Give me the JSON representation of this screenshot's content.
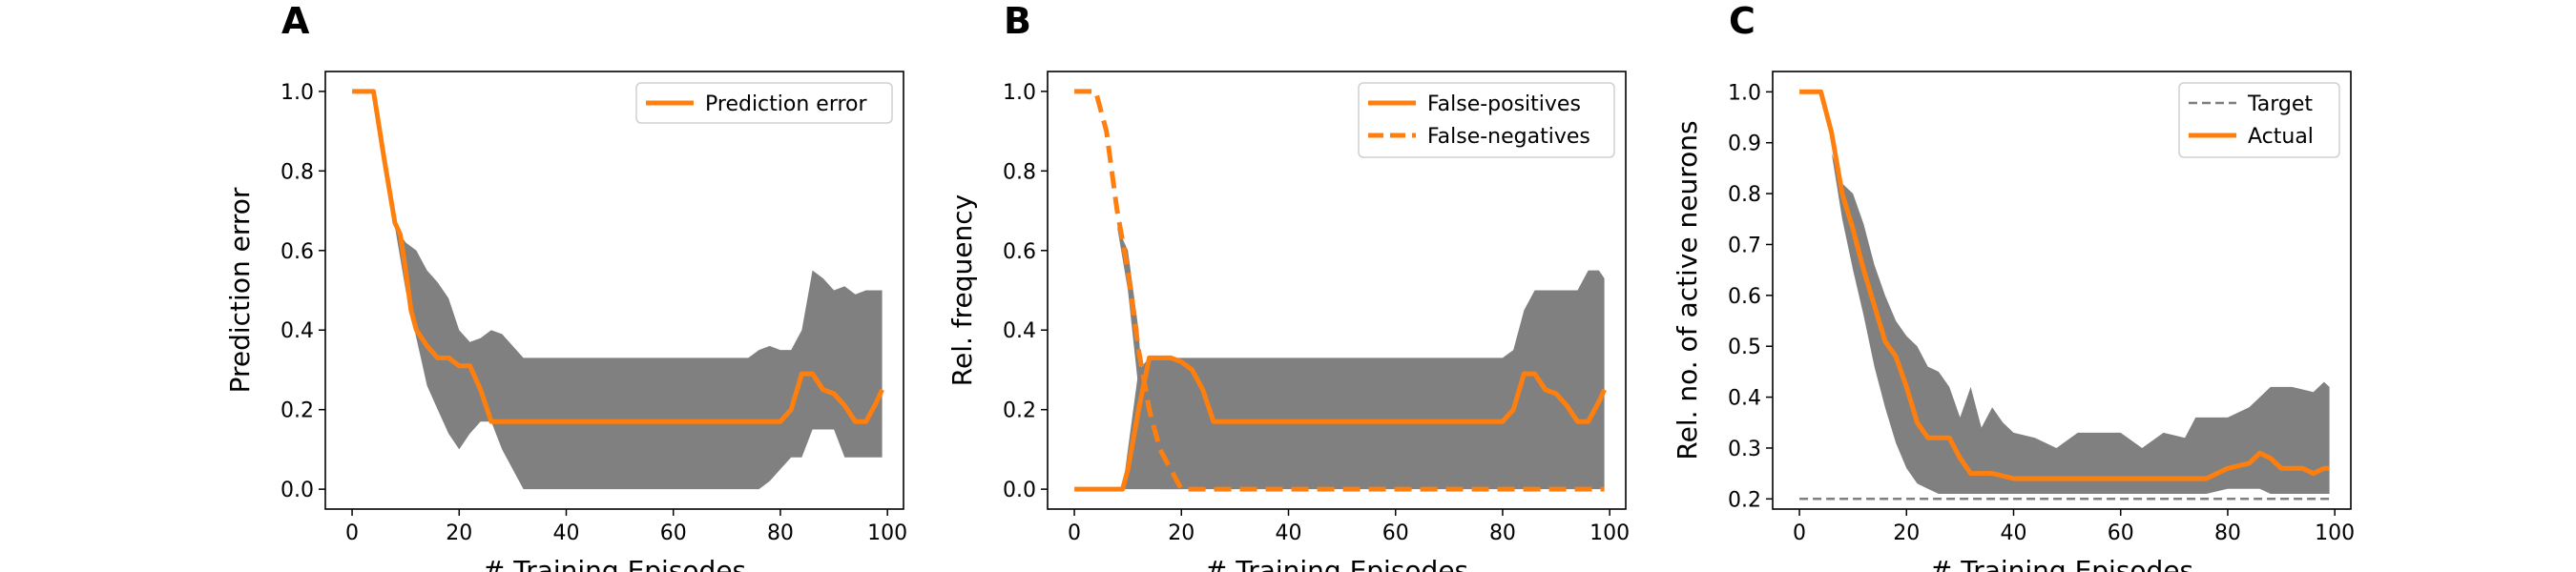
{
  "chart_data": [
    {
      "panel_label": "A",
      "type": "line",
      "title": "",
      "xlabel": "# Training Episodes",
      "ylabel": "Prediction error",
      "xlim": [
        -5,
        103
      ],
      "ylim": [
        -0.05,
        1.05
      ],
      "xticks": [
        0,
        20,
        40,
        60,
        80,
        100
      ],
      "yticks": [
        0.0,
        0.2,
        0.4,
        0.6,
        0.8,
        1.0
      ],
      "ytick_labels": [
        "0.0",
        "0.2",
        "0.4",
        "0.6",
        "0.8",
        "1.0"
      ],
      "grid": false,
      "legend_position": "top-right",
      "bands": [
        {
          "color": "#808080",
          "x": [
            8,
            10,
            12,
            14,
            16,
            18,
            20,
            22,
            24,
            26,
            28,
            30,
            32,
            34,
            36,
            40,
            50,
            60,
            70,
            74,
            76,
            78,
            80,
            82,
            84,
            86,
            88,
            90,
            92,
            94,
            96,
            98,
            99
          ],
          "upper": [
            0.66,
            0.62,
            0.6,
            0.55,
            0.52,
            0.48,
            0.4,
            0.37,
            0.38,
            0.4,
            0.39,
            0.36,
            0.33,
            0.33,
            0.33,
            0.33,
            0.33,
            0.33,
            0.33,
            0.33,
            0.35,
            0.36,
            0.35,
            0.35,
            0.4,
            0.55,
            0.53,
            0.5,
            0.51,
            0.49,
            0.5,
            0.5,
            0.5
          ],
          "lower": [
            0.66,
            0.5,
            0.38,
            0.26,
            0.2,
            0.14,
            0.1,
            0.14,
            0.17,
            0.17,
            0.1,
            0.05,
            0.0,
            0.0,
            0.0,
            0.0,
            0.0,
            0.0,
            0.0,
            0.0,
            0.0,
            0.02,
            0.05,
            0.08,
            0.08,
            0.15,
            0.15,
            0.15,
            0.08,
            0.08,
            0.08,
            0.08,
            0.08
          ]
        }
      ],
      "series": [
        {
          "name": "Prediction error",
          "color": "#ff7f0e",
          "style": "solid",
          "x": [
            0,
            4,
            6,
            8,
            9,
            10,
            11,
            12,
            14,
            16,
            18,
            20,
            22,
            24,
            26,
            28,
            40,
            60,
            80,
            82,
            84,
            86,
            88,
            90,
            92,
            94,
            96,
            98,
            99
          ],
          "y": [
            1.0,
            1.0,
            0.83,
            0.67,
            0.64,
            0.55,
            0.45,
            0.4,
            0.36,
            0.33,
            0.33,
            0.31,
            0.31,
            0.25,
            0.17,
            0.17,
            0.17,
            0.17,
            0.17,
            0.2,
            0.29,
            0.29,
            0.25,
            0.24,
            0.21,
            0.17,
            0.17,
            0.22,
            0.25
          ]
        }
      ]
    },
    {
      "panel_label": "B",
      "type": "line",
      "title": "",
      "xlabel": "# Training Episodes",
      "ylabel": "Rel. frequency",
      "xlim": [
        -5,
        103
      ],
      "ylim": [
        -0.05,
        1.05
      ],
      "xticks": [
        0,
        20,
        40,
        60,
        80,
        100
      ],
      "yticks": [
        0.0,
        0.2,
        0.4,
        0.6,
        0.8,
        1.0
      ],
      "ytick_labels": [
        "0.0",
        "0.2",
        "0.4",
        "0.6",
        "0.8",
        "1.0"
      ],
      "grid": false,
      "legend_position": "top-right",
      "bands": [
        {
          "color": "#808080",
          "x": [
            9,
            10,
            12,
            14,
            16,
            18,
            20,
            22,
            24,
            26,
            28,
            30,
            40,
            60,
            80,
            82,
            84,
            86,
            88,
            90,
            92,
            94,
            96,
            98,
            99
          ],
          "upper": [
            0.0,
            0.1,
            0.3,
            0.33,
            0.33,
            0.33,
            0.33,
            0.33,
            0.33,
            0.33,
            0.33,
            0.33,
            0.33,
            0.33,
            0.33,
            0.35,
            0.45,
            0.5,
            0.5,
            0.5,
            0.5,
            0.5,
            0.55,
            0.55,
            0.53
          ],
          "lower": [
            0.0,
            0.0,
            0.0,
            0.0,
            0.0,
            0.0,
            0.0,
            0.0,
            0.0,
            0.0,
            0.0,
            0.0,
            0.0,
            0.0,
            0.0,
            0.0,
            0.0,
            0.0,
            0.0,
            0.0,
            0.0,
            0.0,
            0.0,
            0.0,
            0.0
          ]
        },
        {
          "color": "#808080",
          "x": [
            8,
            10,
            12,
            13,
            14,
            16,
            18,
            20,
            22,
            24,
            26,
            28,
            30
          ],
          "upper": [
            0.66,
            0.6,
            0.4,
            0.2,
            0.2,
            0.33,
            0.33,
            0.2,
            0.33,
            0.3,
            0.15,
            0.05,
            0.0
          ],
          "lower": [
            0.66,
            0.5,
            0.25,
            0.1,
            0.05,
            0.0,
            0.0,
            0.0,
            0.1,
            0.1,
            0.0,
            0.0,
            0.0
          ]
        }
      ],
      "series": [
        {
          "name": "False-positives",
          "color": "#ff7f0e",
          "style": "solid",
          "x": [
            0,
            9,
            10,
            12,
            14,
            16,
            18,
            20,
            22,
            24,
            26,
            28,
            80,
            82,
            84,
            86,
            88,
            90,
            92,
            94,
            96,
            98,
            99
          ],
          "y": [
            0.0,
            0.0,
            0.05,
            0.2,
            0.33,
            0.33,
            0.33,
            0.32,
            0.3,
            0.25,
            0.17,
            0.17,
            0.17,
            0.2,
            0.29,
            0.29,
            0.25,
            0.24,
            0.21,
            0.17,
            0.17,
            0.22,
            0.25
          ]
        },
        {
          "name": "False-negatives",
          "color": "#ff7f0e",
          "style": "dashed",
          "x": [
            0,
            4,
            6,
            8,
            10,
            12,
            14,
            16,
            18,
            20,
            99
          ],
          "y": [
            1.0,
            1.0,
            0.9,
            0.7,
            0.55,
            0.35,
            0.2,
            0.1,
            0.05,
            0.0,
            0.0
          ]
        }
      ]
    },
    {
      "panel_label": "C",
      "type": "line",
      "title": "",
      "xlabel": "# Training Episodes",
      "ylabel": "Rel. no. of active neurons",
      "xlim": [
        -5,
        103
      ],
      "ylim": [
        0.18,
        1.04
      ],
      "xticks": [
        0,
        20,
        40,
        60,
        80,
        100
      ],
      "yticks": [
        0.2,
        0.3,
        0.4,
        0.5,
        0.6,
        0.7,
        0.8,
        0.9,
        1.0
      ],
      "ytick_labels": [
        "0.2",
        "0.3",
        "0.4",
        "0.5",
        "0.6",
        "0.7",
        "0.8",
        "0.9",
        "1.0"
      ],
      "grid": false,
      "legend_position": "top-right",
      "bands": [
        {
          "color": "#808080",
          "x": [
            6,
            8,
            10,
            12,
            14,
            16,
            18,
            20,
            22,
            24,
            26,
            28,
            30,
            32,
            34,
            36,
            38,
            40,
            44,
            48,
            52,
            56,
            60,
            64,
            68,
            72,
            74,
            76,
            80,
            84,
            86,
            88,
            92,
            96,
            98,
            99
          ],
          "upper": [
            0.88,
            0.82,
            0.8,
            0.74,
            0.66,
            0.6,
            0.55,
            0.52,
            0.5,
            0.46,
            0.45,
            0.42,
            0.36,
            0.42,
            0.34,
            0.38,
            0.35,
            0.33,
            0.32,
            0.3,
            0.33,
            0.33,
            0.33,
            0.3,
            0.33,
            0.32,
            0.36,
            0.36,
            0.36,
            0.38,
            0.4,
            0.42,
            0.42,
            0.41,
            0.43,
            0.42
          ],
          "lower": [
            0.88,
            0.75,
            0.65,
            0.56,
            0.46,
            0.38,
            0.31,
            0.26,
            0.23,
            0.22,
            0.21,
            0.21,
            0.21,
            0.21,
            0.21,
            0.21,
            0.21,
            0.21,
            0.21,
            0.21,
            0.21,
            0.21,
            0.21,
            0.21,
            0.21,
            0.21,
            0.21,
            0.21,
            0.22,
            0.22,
            0.22,
            0.21,
            0.21,
            0.21,
            0.21,
            0.21
          ]
        }
      ],
      "series": [
        {
          "name": "Target",
          "color": "#7f7f7f",
          "style": "dashed",
          "thin": true,
          "x": [
            0,
            99
          ],
          "y": [
            0.2,
            0.2
          ]
        },
        {
          "name": "Actual",
          "color": "#ff7f0e",
          "style": "solid",
          "x": [
            0,
            4,
            6,
            8,
            10,
            12,
            14,
            16,
            18,
            20,
            22,
            24,
            26,
            28,
            30,
            32,
            36,
            40,
            50,
            60,
            70,
            76,
            80,
            84,
            86,
            88,
            90,
            94,
            96,
            98,
            99
          ],
          "y": [
            1.0,
            1.0,
            0.92,
            0.8,
            0.73,
            0.65,
            0.58,
            0.51,
            0.48,
            0.42,
            0.35,
            0.32,
            0.32,
            0.32,
            0.28,
            0.25,
            0.25,
            0.24,
            0.24,
            0.24,
            0.24,
            0.24,
            0.26,
            0.27,
            0.29,
            0.28,
            0.26,
            0.26,
            0.25,
            0.26,
            0.26
          ]
        }
      ]
    }
  ]
}
